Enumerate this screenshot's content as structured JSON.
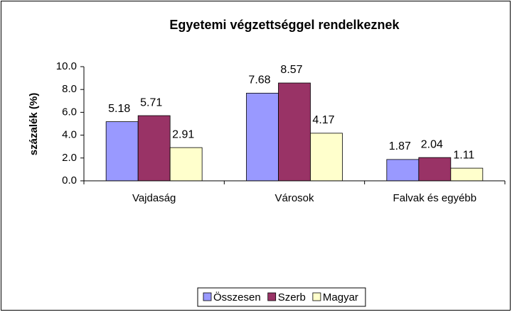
{
  "chart_data": {
    "type": "bar",
    "title": "Egyetemi végzettséggel rendelkeznek",
    "ylabel": "százalék (%)",
    "categories": [
      "Vajdaság",
      "Városok",
      "Falvak és egyébb"
    ],
    "series": [
      {
        "name": "Összesen",
        "color": "#9999ff",
        "values": [
          5.18,
          7.68,
          1.87
        ]
      },
      {
        "name": "Szerb",
        "color": "#993366",
        "values": [
          5.71,
          8.57,
          2.04
        ]
      },
      {
        "name": "Magyar",
        "color": "#ffffcc",
        "values": [
          2.91,
          4.17,
          1.11
        ]
      }
    ],
    "ylim": [
      0,
      10
    ],
    "yticks": [
      {
        "value": 0,
        "label": "0.0"
      },
      {
        "value": 2,
        "label": "2.0"
      },
      {
        "value": 4,
        "label": "4.0"
      },
      {
        "value": 6,
        "label": "6.0"
      },
      {
        "value": 8,
        "label": "8.0"
      },
      {
        "value": 10,
        "label": "10.0"
      }
    ],
    "legend": "bottom"
  }
}
